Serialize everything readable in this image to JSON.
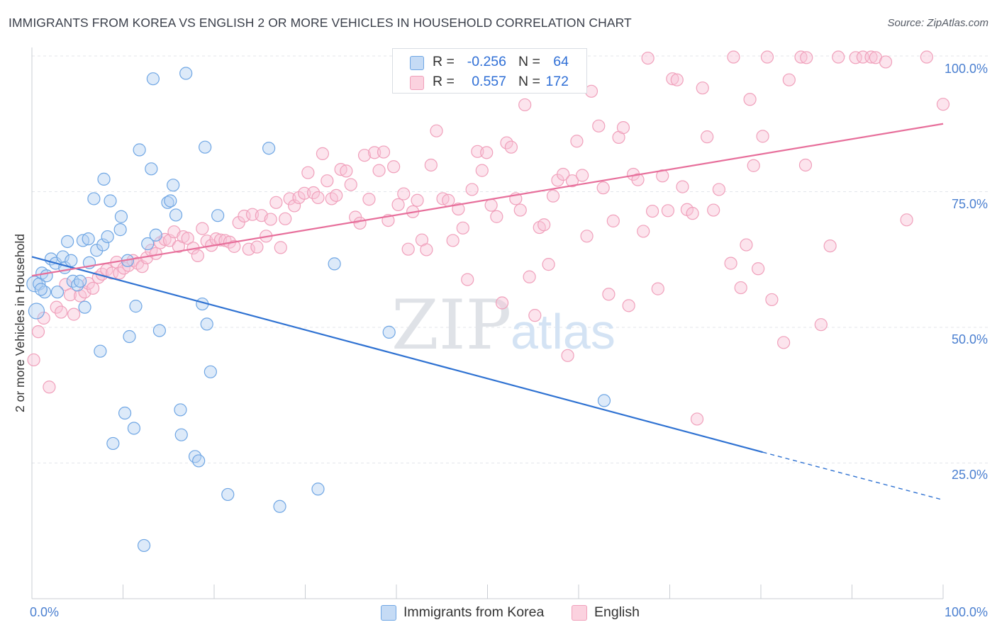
{
  "title": "IMMIGRANTS FROM KOREA VS ENGLISH 2 OR MORE VEHICLES IN HOUSEHOLD CORRELATION CHART",
  "source": "Source: ZipAtlas.com",
  "watermark": {
    "zip": "ZIP",
    "atlas": "atlas"
  },
  "legend": {
    "korea": {
      "r_label": "R =",
      "r_value": "-0.256",
      "n_label": "N =",
      "n_value": "64",
      "color": "#6fa6e4"
    },
    "english": {
      "r_label": "R =",
      "r_value": "0.557",
      "n_label": "N =",
      "n_value": "172",
      "color": "#f0a0bb"
    }
  },
  "bottom_legend": {
    "korea": "Immigrants from Korea",
    "english": "English"
  },
  "chart_data": {
    "type": "scatter",
    "title": "IMMIGRANTS FROM KOREA VS ENGLISH 2 OR MORE VEHICLES IN HOUSEHOLD CORRELATION CHART",
    "xlabel": "",
    "ylabel": "2 or more Vehicles in Household",
    "xlim": [
      0,
      100
    ],
    "ylim": [
      0,
      100
    ],
    "x_tick_labels": [
      {
        "value": 0,
        "label": "0.0%"
      },
      {
        "value": 100,
        "label": "100.0%"
      }
    ],
    "y_tick_labels": [
      {
        "value": 25,
        "label": "25.0%"
      },
      {
        "value": 50,
        "label": "50.0%"
      },
      {
        "value": 75,
        "label": "75.0%"
      },
      {
        "value": 100,
        "label": "100.0%"
      }
    ],
    "grid": true,
    "legend_position": "top-center",
    "series": [
      {
        "name": "Immigrants from Korea",
        "color": "#6fa6e4",
        "trend": {
          "x": [
            0,
            80.2
          ],
          "y": [
            63,
            27
          ],
          "dashed_to": [
            100,
            18.2
          ]
        },
        "points": [
          [
            0.3,
            58
          ],
          [
            0.5,
            53
          ],
          [
            0.8,
            58
          ],
          [
            1.1,
            60
          ],
          [
            1.4,
            56.5
          ],
          [
            1.6,
            59.5
          ],
          [
            2.1,
            62.6
          ],
          [
            2.6,
            61.8
          ],
          [
            2.8,
            56.5
          ],
          [
            3.4,
            63
          ],
          [
            3.6,
            61
          ],
          [
            3.9,
            65.8
          ],
          [
            4.3,
            62.3
          ],
          [
            4.5,
            58.5
          ],
          [
            5,
            57.8
          ],
          [
            5.3,
            58.5
          ],
          [
            5.6,
            66
          ],
          [
            5.8,
            53.7
          ],
          [
            6.2,
            66.3
          ],
          [
            6.3,
            61.9
          ],
          [
            6.8,
            73.7
          ],
          [
            7.1,
            64.2
          ],
          [
            7.5,
            45.6
          ],
          [
            7.8,
            65.2
          ],
          [
            7.9,
            77.3
          ],
          [
            8.3,
            66.7
          ],
          [
            8.6,
            73.3
          ],
          [
            8.9,
            28.6
          ],
          [
            9.7,
            68
          ],
          [
            9.8,
            70.4
          ],
          [
            10.2,
            34.2
          ],
          [
            10.5,
            62.3
          ],
          [
            10.7,
            48.3
          ],
          [
            11.2,
            31.4
          ],
          [
            11.4,
            53.9
          ],
          [
            11.8,
            82.7
          ],
          [
            12.3,
            9.8
          ],
          [
            12.7,
            65.4
          ],
          [
            13.1,
            79.2
          ],
          [
            13.3,
            95.8
          ],
          [
            13.6,
            67
          ],
          [
            14,
            49.4
          ],
          [
            14.9,
            73
          ],
          [
            15.2,
            73.3
          ],
          [
            15.5,
            76.2
          ],
          [
            15.8,
            70.7
          ],
          [
            16.3,
            34.8
          ],
          [
            16.4,
            30.2
          ],
          [
            16.9,
            96.8
          ],
          [
            17.9,
            26.2
          ],
          [
            18.3,
            25.4
          ],
          [
            18.7,
            54.3
          ],
          [
            19,
            83.2
          ],
          [
            19.2,
            50.6
          ],
          [
            19.6,
            41.8
          ],
          [
            20.4,
            70.6
          ],
          [
            21.5,
            19.2
          ],
          [
            26,
            83
          ],
          [
            27.2,
            17
          ],
          [
            31.4,
            20.2
          ],
          [
            33.2,
            61.7
          ],
          [
            39.2,
            49.1
          ],
          [
            62.8,
            36.5
          ],
          [
            1,
            57
          ]
        ]
      },
      {
        "name": "English",
        "color": "#f0a0bb",
        "trend": {
          "x": [
            0,
            100
          ],
          "y": [
            59.5,
            87.5
          ]
        },
        "points": [
          [
            0.2,
            44
          ],
          [
            0.7,
            49.2
          ],
          [
            1.3,
            51.7
          ],
          [
            1.9,
            39
          ],
          [
            2.7,
            53.7
          ],
          [
            3.2,
            52.8
          ],
          [
            3.7,
            57.9
          ],
          [
            4.2,
            56
          ],
          [
            4.6,
            52.4
          ],
          [
            5.3,
            55.8
          ],
          [
            5.8,
            56.5
          ],
          [
            6.2,
            58.1
          ],
          [
            6.7,
            57.2
          ],
          [
            7.3,
            59.2
          ],
          [
            7.7,
            59.8
          ],
          [
            8.2,
            60.6
          ],
          [
            8.8,
            60
          ],
          [
            9.3,
            62
          ],
          [
            9.6,
            60
          ],
          [
            10.1,
            60.9
          ],
          [
            10.6,
            61.4
          ],
          [
            11.1,
            62.3
          ],
          [
            11.6,
            61.8
          ],
          [
            12.1,
            61.2
          ],
          [
            12.6,
            62.8
          ],
          [
            13.1,
            64.2
          ],
          [
            13.6,
            63.6
          ],
          [
            14.1,
            65.6
          ],
          [
            14.6,
            66.2
          ],
          [
            15.1,
            66
          ],
          [
            15.6,
            67.6
          ],
          [
            16.1,
            64.9
          ],
          [
            16.6,
            66.7
          ],
          [
            17.1,
            66.4
          ],
          [
            17.7,
            64.6
          ],
          [
            18.2,
            63.2
          ],
          [
            18.7,
            68.2
          ],
          [
            19.2,
            65.9
          ],
          [
            19.7,
            65.1
          ],
          [
            20.2,
            66.3
          ],
          [
            20.7,
            66.1
          ],
          [
            21.2,
            66
          ],
          [
            21.7,
            65.7
          ],
          [
            22.2,
            64.9
          ],
          [
            22.7,
            69.3
          ],
          [
            23.3,
            70.5
          ],
          [
            23.8,
            64.4
          ],
          [
            24.2,
            70.8
          ],
          [
            24.7,
            64.8
          ],
          [
            25.2,
            70.6
          ],
          [
            25.7,
            66.8
          ],
          [
            26.2,
            69.9
          ],
          [
            26.8,
            73
          ],
          [
            27.3,
            64.7
          ],
          [
            27.8,
            70
          ],
          [
            28.3,
            73.7
          ],
          [
            28.8,
            72.4
          ],
          [
            29.3,
            73.9
          ],
          [
            29.9,
            74.7
          ],
          [
            30.3,
            78.5
          ],
          [
            30.9,
            74.8
          ],
          [
            31.4,
            73.9
          ],
          [
            31.9,
            82
          ],
          [
            32.4,
            77
          ],
          [
            32.9,
            73.7
          ],
          [
            33.4,
            74.3
          ],
          [
            33.9,
            79.1
          ],
          [
            34.5,
            78.8
          ],
          [
            35,
            76.3
          ],
          [
            35.5,
            70.3
          ],
          [
            36,
            69.2
          ],
          [
            36.5,
            81.7
          ],
          [
            37,
            73.6
          ],
          [
            37.6,
            82.2
          ],
          [
            38.1,
            78.9
          ],
          [
            38.6,
            82.3
          ],
          [
            39.1,
            69.7
          ],
          [
            39.7,
            79.6
          ],
          [
            40.2,
            72.6
          ],
          [
            40.8,
            74.6
          ],
          [
            41.3,
            64.4
          ],
          [
            41.8,
            71.3
          ],
          [
            42.3,
            73.4
          ],
          [
            42.8,
            66.1
          ],
          [
            43.3,
            64.3
          ],
          [
            43.8,
            79.9
          ],
          [
            44.4,
            86.2
          ],
          [
            45.1,
            73.7
          ],
          [
            45.7,
            73.4
          ],
          [
            46.2,
            66
          ],
          [
            46.8,
            71.8
          ],
          [
            47.3,
            68.3
          ],
          [
            47.8,
            58.8
          ],
          [
            48.3,
            75.4
          ],
          [
            48.9,
            82.4
          ],
          [
            49.4,
            78.9
          ],
          [
            49.9,
            82.2
          ],
          [
            50.4,
            72.5
          ],
          [
            51,
            70.4
          ],
          [
            51.6,
            54.5
          ],
          [
            52.1,
            84
          ],
          [
            52.6,
            83.2
          ],
          [
            53.1,
            73.7
          ],
          [
            53.6,
            71.6
          ],
          [
            54.1,
            91
          ],
          [
            54.6,
            59.3
          ],
          [
            55.2,
            52.2
          ],
          [
            55.7,
            68.4
          ],
          [
            56.2,
            68.9
          ],
          [
            56.7,
            61.6
          ],
          [
            57.2,
            74.2
          ],
          [
            57.7,
            77.1
          ],
          [
            58.3,
            78.2
          ],
          [
            58.8,
            44.8
          ],
          [
            59.3,
            77
          ],
          [
            59.8,
            84.3
          ],
          [
            60.4,
            78
          ],
          [
            60.9,
            66.8
          ],
          [
            61.4,
            93.5
          ],
          [
            62.2,
            87.1
          ],
          [
            62.7,
            75.7
          ],
          [
            63.3,
            56.1
          ],
          [
            63.8,
            69.6
          ],
          [
            64.4,
            85
          ],
          [
            64.9,
            86.8
          ],
          [
            65.5,
            54
          ],
          [
            66,
            78.2
          ],
          [
            66.5,
            77.2
          ],
          [
            67.1,
            67.7
          ],
          [
            67.6,
            99.6
          ],
          [
            68.1,
            71.4
          ],
          [
            68.7,
            57.1
          ],
          [
            69.2,
            77.9
          ],
          [
            69.8,
            71.5
          ],
          [
            70.3,
            95.8
          ],
          [
            70.8,
            95.6
          ],
          [
            71.4,
            75.9
          ],
          [
            71.9,
            71.7
          ],
          [
            72.5,
            71
          ],
          [
            73,
            33.1
          ],
          [
            73.6,
            94.1
          ],
          [
            74.1,
            85.1
          ],
          [
            74.8,
            71.6
          ],
          [
            75.4,
            75.4
          ],
          [
            76.7,
            61.8
          ],
          [
            77,
            99.8
          ],
          [
            77.8,
            57.3
          ],
          [
            78.4,
            65.2
          ],
          [
            78.8,
            92
          ],
          [
            79.2,
            79.8
          ],
          [
            79.7,
            60.8
          ],
          [
            80.2,
            85.2
          ],
          [
            80.7,
            99.8
          ],
          [
            81.2,
            55.1
          ],
          [
            82.5,
            47.2
          ],
          [
            83.1,
            95.6
          ],
          [
            84.4,
            99.8
          ],
          [
            84.9,
            79.9
          ],
          [
            85,
            99.7
          ],
          [
            86.6,
            50.5
          ],
          [
            87.6,
            65
          ],
          [
            88.5,
            99.8
          ],
          [
            90.4,
            99.7
          ],
          [
            91.2,
            99.8
          ],
          [
            92.1,
            99.8
          ],
          [
            92.6,
            99.7
          ],
          [
            93.7,
            98.9
          ],
          [
            96,
            69.8
          ],
          [
            98.2,
            99.8
          ],
          [
            100,
            91.1
          ]
        ]
      }
    ]
  }
}
